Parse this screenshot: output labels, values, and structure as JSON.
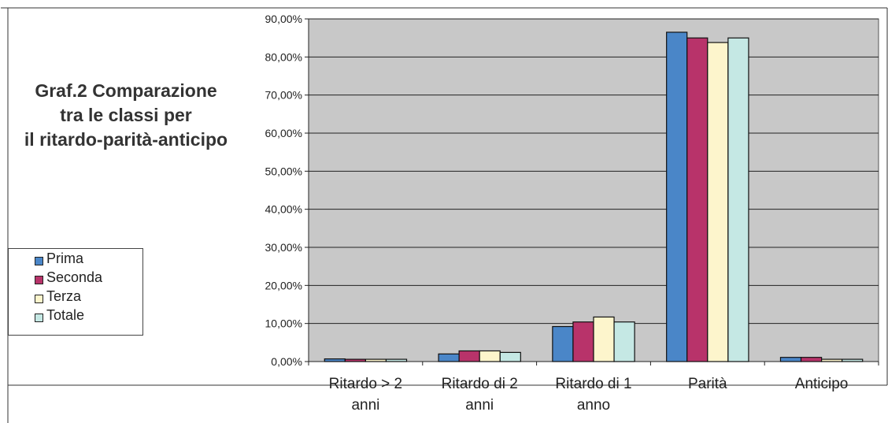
{
  "chart_data": {
    "type": "bar",
    "title_lines": [
      "Graf.2 Comparazione",
      "tra le classi per",
      "il ritardo-parità-anticipo"
    ],
    "categories": [
      [
        "Ritardo > 2",
        "anni"
      ],
      [
        "Ritardo di 2",
        "anni"
      ],
      [
        "Ritardo di 1",
        "anno"
      ],
      [
        "Parità"
      ],
      [
        "Anticipo"
      ]
    ],
    "series": [
      {
        "name": "Prima",
        "color": "#4a86c8",
        "values": [
          0.7,
          2.0,
          9.2,
          86.5,
          1.1
        ]
      },
      {
        "name": "Seconda",
        "color": "#b8336a",
        "values": [
          0.6,
          2.8,
          10.4,
          85.0,
          1.1
        ]
      },
      {
        "name": "Terza",
        "color": "#fdf5cc",
        "values": [
          0.6,
          2.8,
          11.7,
          83.8,
          0.6
        ]
      },
      {
        "name": "Totale",
        "color": "#c5e8e4",
        "values": [
          0.6,
          2.4,
          10.4,
          85.0,
          0.6
        ]
      }
    ],
    "yticks": [
      "0,00%",
      "10,00%",
      "20,00%",
      "30,00%",
      "40,00%",
      "50,00%",
      "60,00%",
      "70,00%",
      "80,00%",
      "90,00%"
    ],
    "ylim": [
      0,
      90
    ],
    "xlabel": "",
    "ylabel": "",
    "grid": true,
    "legend_position": "left",
    "plot_background": "#c8c8c8"
  }
}
